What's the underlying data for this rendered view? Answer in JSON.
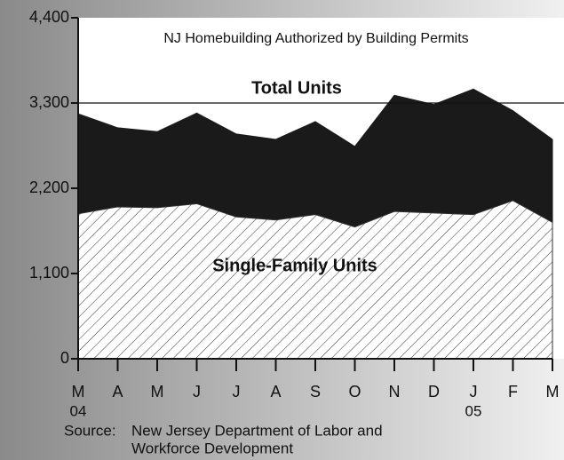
{
  "chart_data": {
    "type": "area",
    "title": "NJ Homebuilding Authorized by Building Permits",
    "categories": [
      "M",
      "A",
      "M",
      "J",
      "J",
      "A",
      "S",
      "O",
      "N",
      "D",
      "J",
      "F",
      "M"
    ],
    "x_sublabels": [
      "04",
      null,
      null,
      null,
      null,
      null,
      null,
      null,
      null,
      null,
      "05",
      null,
      null
    ],
    "series": [
      {
        "name": "Total Units",
        "color": "#1a1a1a",
        "values": [
          3160,
          2980,
          2930,
          3170,
          2900,
          2830,
          3060,
          2740,
          3400,
          3280,
          3480,
          3200,
          2830
        ]
      },
      {
        "name": "Single-Family Units",
        "color": "#ffffff",
        "hatch": true,
        "values": [
          1870,
          1960,
          1950,
          2000,
          1830,
          1790,
          1860,
          1700,
          1900,
          1880,
          1860,
          2040,
          1760
        ]
      }
    ],
    "ylim": [
      0,
      4400
    ],
    "yticks": [
      0,
      {
        "value": 1100,
        "label": "1,100"
      },
      {
        "value": 2200,
        "label": "2,200"
      },
      {
        "value": 3300,
        "label": "3,300"
      },
      {
        "value": 4400,
        "label": "4,400"
      }
    ],
    "hline": 3300,
    "source_label": "Source:",
    "source_lines": [
      "New Jersey Department of Labor and",
      "Workforce Development"
    ]
  }
}
